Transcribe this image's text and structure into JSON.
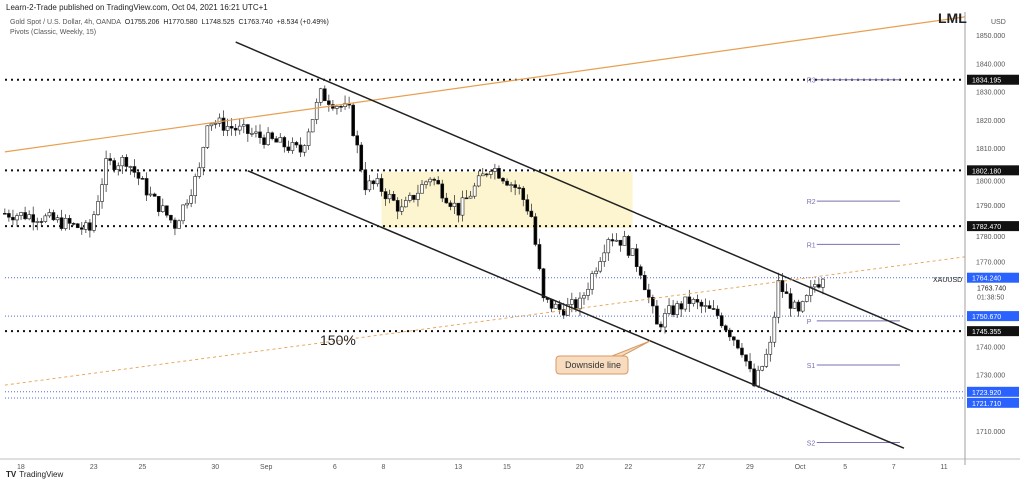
{
  "header": {
    "published": "Learn-2-Trade published on TradingView.com, Oct 04, 2021 16:21 UTC+1",
    "symbol": "Gold Spot / U.S. Dollar, 4h, OANDA",
    "open": "O1755.206",
    "high": "H1770.580",
    "low": "L1748.525",
    "close": "C1763.740",
    "change": "+8.534 (+0.49%)",
    "indicator": "Pivots (Classic, Weekly, 15)"
  },
  "footer": {
    "logo_mark": "TV",
    "brand": "TradingView"
  },
  "watermark": "LML",
  "colors": {
    "up": "#ffffff",
    "down": "#000000",
    "orange": "#e8a050",
    "blue_label": "#2962ff",
    "pivot": "#7b6fb0",
    "zone": "#fdf5d0"
  },
  "chart_data": {
    "type": "candlestick",
    "title": "Gold Spot / U.S. Dollar, 4h, OANDA",
    "currency": "USD",
    "ylim": [
      1700,
      1857
    ],
    "price_ticks": [
      "1850.000",
      "1840.000",
      "1830.000",
      "1820.000",
      "1810.000",
      "1800.000",
      "1790.000",
      "1780.000",
      "1770.000",
      "1740.000",
      "1730.000",
      "1710.000"
    ],
    "date_ticks": [
      {
        "label": "18",
        "date": "2021-08-18"
      },
      {
        "label": "23",
        "date": "2021-08-23"
      },
      {
        "label": "25",
        "date": "2021-08-25"
      },
      {
        "label": "30",
        "date": "2021-08-30"
      },
      {
        "label": "Sep",
        "date": "2021-09-01"
      },
      {
        "label": "6",
        "date": "2021-09-06"
      },
      {
        "label": "8",
        "date": "2021-09-08"
      },
      {
        "label": "13",
        "date": "2021-09-13"
      },
      {
        "label": "15",
        "date": "2021-09-15"
      },
      {
        "label": "20",
        "date": "2021-09-20"
      },
      {
        "label": "22",
        "date": "2021-09-22"
      },
      {
        "label": "27",
        "date": "2021-09-27"
      },
      {
        "label": "29",
        "date": "2021-09-29"
      },
      {
        "label": "Oct",
        "date": "2021-10-01"
      },
      {
        "label": "5",
        "date": "2021-10-05"
      },
      {
        "label": "7",
        "date": "2021-10-07"
      },
      {
        "label": "11",
        "date": "2021-10-11"
      }
    ],
    "price_path": [
      [
        "2021-08-17 12",
        1787
      ],
      [
        "2021-08-18 20",
        1786
      ],
      [
        "2021-08-23 00",
        1781
      ],
      [
        "2021-08-23 16",
        1804
      ],
      [
        "2021-08-24 12",
        1806
      ],
      [
        "2021-08-25 12",
        1793
      ],
      [
        "2021-08-26 12",
        1783
      ],
      [
        "2021-08-27 12",
        1802
      ],
      [
        "2021-08-27 20",
        1820
      ],
      [
        "2021-08-31 16",
        1815
      ],
      [
        "2021-09-02 16",
        1809
      ],
      [
        "2021-09-03 12",
        1829
      ],
      [
        "2021-09-06 16",
        1823
      ],
      [
        "2021-09-07 08",
        1797
      ],
      [
        "2021-09-07 20",
        1797
      ],
      [
        "2021-09-08 20",
        1788
      ],
      [
        "2021-09-10 00",
        1800
      ],
      [
        "2021-09-13 04",
        1788
      ],
      [
        "2021-09-14 12",
        1804
      ],
      [
        "2021-09-15 16",
        1795
      ],
      [
        "2021-09-16 04",
        1786
      ],
      [
        "2021-09-16 16",
        1756
      ],
      [
        "2021-09-17 08",
        1753
      ],
      [
        "2021-09-20 04",
        1755
      ],
      [
        "2021-09-21 00",
        1772
      ],
      [
        "2021-09-21 08",
        1779
      ],
      [
        "2021-09-22 00",
        1777
      ],
      [
        "2021-09-22 16",
        1767
      ],
      [
        "2021-09-23 08",
        1747
      ],
      [
        "2021-09-23 20",
        1752
      ],
      [
        "2021-09-24 16",
        1756
      ],
      [
        "2021-09-27 20",
        1751
      ],
      [
        "2021-09-28 20",
        1739
      ],
      [
        "2021-09-29 08",
        1726
      ],
      [
        "2021-09-30 00",
        1740
      ],
      [
        "2021-09-30 08",
        1762
      ],
      [
        "2021-10-01 04",
        1751
      ],
      [
        "2021-10-01 20",
        1762
      ],
      [
        "2021-10-04 04",
        1763.74
      ]
    ],
    "levels": [
      {
        "label": "1834.195",
        "price": 1834.195,
        "style": "black-dotted"
      },
      {
        "label": "1802.180",
        "price": 1802.18,
        "style": "black-dotted"
      },
      {
        "label": "1782.470",
        "price": 1782.47,
        "style": "black-dotted"
      },
      {
        "label": "1745.355",
        "price": 1745.355,
        "style": "black-dotted"
      },
      {
        "label": "1764.240",
        "price": 1764.24,
        "style": "blue-dotted"
      },
      {
        "label": "1750.670",
        "price": 1750.67,
        "style": "blue-dotted"
      },
      {
        "label": "1723.920",
        "price": 1723.92,
        "style": "blue-dotted"
      },
      {
        "label": "1721.710",
        "price": 1721.71,
        "style": "blue-dotted"
      }
    ],
    "current": {
      "symbol": "XAUUSD",
      "price": "1763.740",
      "countdown": "01:38:50"
    },
    "pivots": [
      {
        "label": "R3",
        "price": 1834.195
      },
      {
        "label": "R2",
        "price": 1791.3
      },
      {
        "label": "R1",
        "price": 1776
      },
      {
        "label": "P",
        "price": 1749
      },
      {
        "label": "S1",
        "price": 1733.4
      },
      {
        "label": "S2",
        "price": 1706
      }
    ],
    "trendlines": [
      {
        "name": "orange-rising-line",
        "from": [
          "2021-08-17 12",
          1808.7
        ],
        "to": [
          "2021-10-12 00",
          1856.4
        ],
        "style": "orange-solid"
      },
      {
        "name": "channel-upper-line",
        "from": [
          "2021-08-31 00",
          1847.5
        ],
        "to": [
          "2021-10-07 20",
          1745.4
        ],
        "style": "black"
      },
      {
        "name": "channel-lower-line",
        "from": [
          "2021-08-31 12",
          1802
        ],
        "to": [
          "2021-10-07 12",
          1704
        ],
        "style": "black"
      },
      {
        "name": "fib-150-line",
        "from": [
          "2021-08-17 12",
          1726.3
        ],
        "to": [
          "2021-10-12 00",
          1771.6
        ],
        "style": "orange-dashed"
      }
    ],
    "zone": {
      "from": "2021-09-08 00",
      "to": "2021-09-22 08",
      "top": 1801.6,
      "bottom": 1781.8
    },
    "annotations": {
      "fib_label": "150%",
      "callout": "Downside line"
    }
  }
}
